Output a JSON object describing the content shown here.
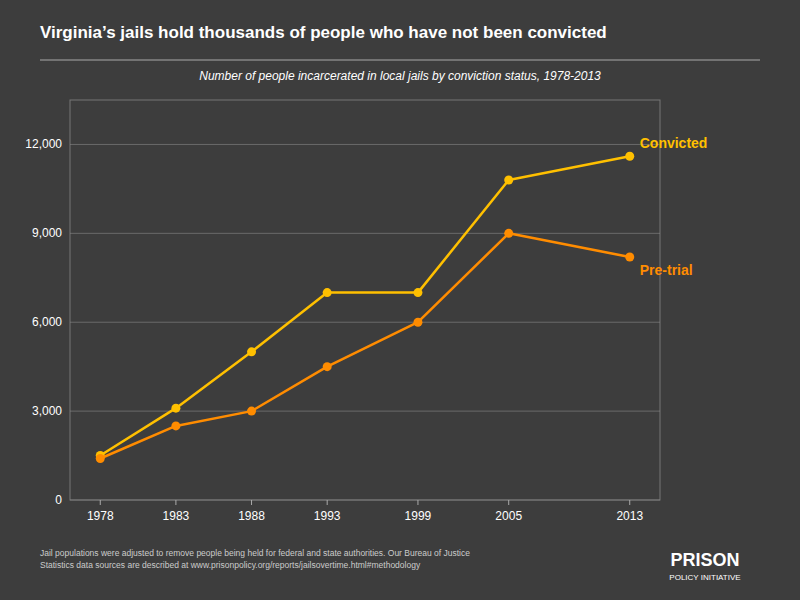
{
  "chart_data": {
    "type": "line",
    "title": "Virginia’s jails hold thousands of people who have not been convicted",
    "subtitle": "Number of people incarcerated in local jails by conviction status, 1978-2013",
    "footnote": "Jail populations were adjusted to remove people being held for federal and state authorities. Our Bureau of Justice\nStatistics data sources are described at www.prisonpolicy.org/reports/jailsovertime.html#methodology",
    "annotations": [
      "PRISON",
      "POLICY INITIATIVE"
    ],
    "x": [
      1978,
      1983,
      1988,
      1993,
      1999,
      2005,
      2013
    ],
    "series": [
      {
        "name": "Convicted",
        "color": "#FFC000",
        "values": [
          1500,
          3100,
          5000,
          7000,
          7000,
          10800,
          11600
        ]
      },
      {
        "name": "Pre-trial",
        "color": "#FF8C00",
        "values": [
          1400,
          2500,
          3000,
          4500,
          6000,
          9000,
          8200
        ]
      }
    ],
    "xlim": [
      1976,
      2015
    ],
    "xticks": [
      1978,
      1983,
      1988,
      1993,
      1999,
      2005,
      2013
    ],
    "ylim": [
      0,
      13500
    ],
    "yticks": [
      0,
      {
        "value": 3000,
        "label": "3,000"
      },
      {
        "value": 6000,
        "label": "6,000"
      },
      {
        "value": 9000,
        "label": "9,000"
      },
      {
        "value": 12000,
        "label": "12,000"
      }
    ],
    "grid": true,
    "marker": "circle",
    "line_style": "solid"
  }
}
